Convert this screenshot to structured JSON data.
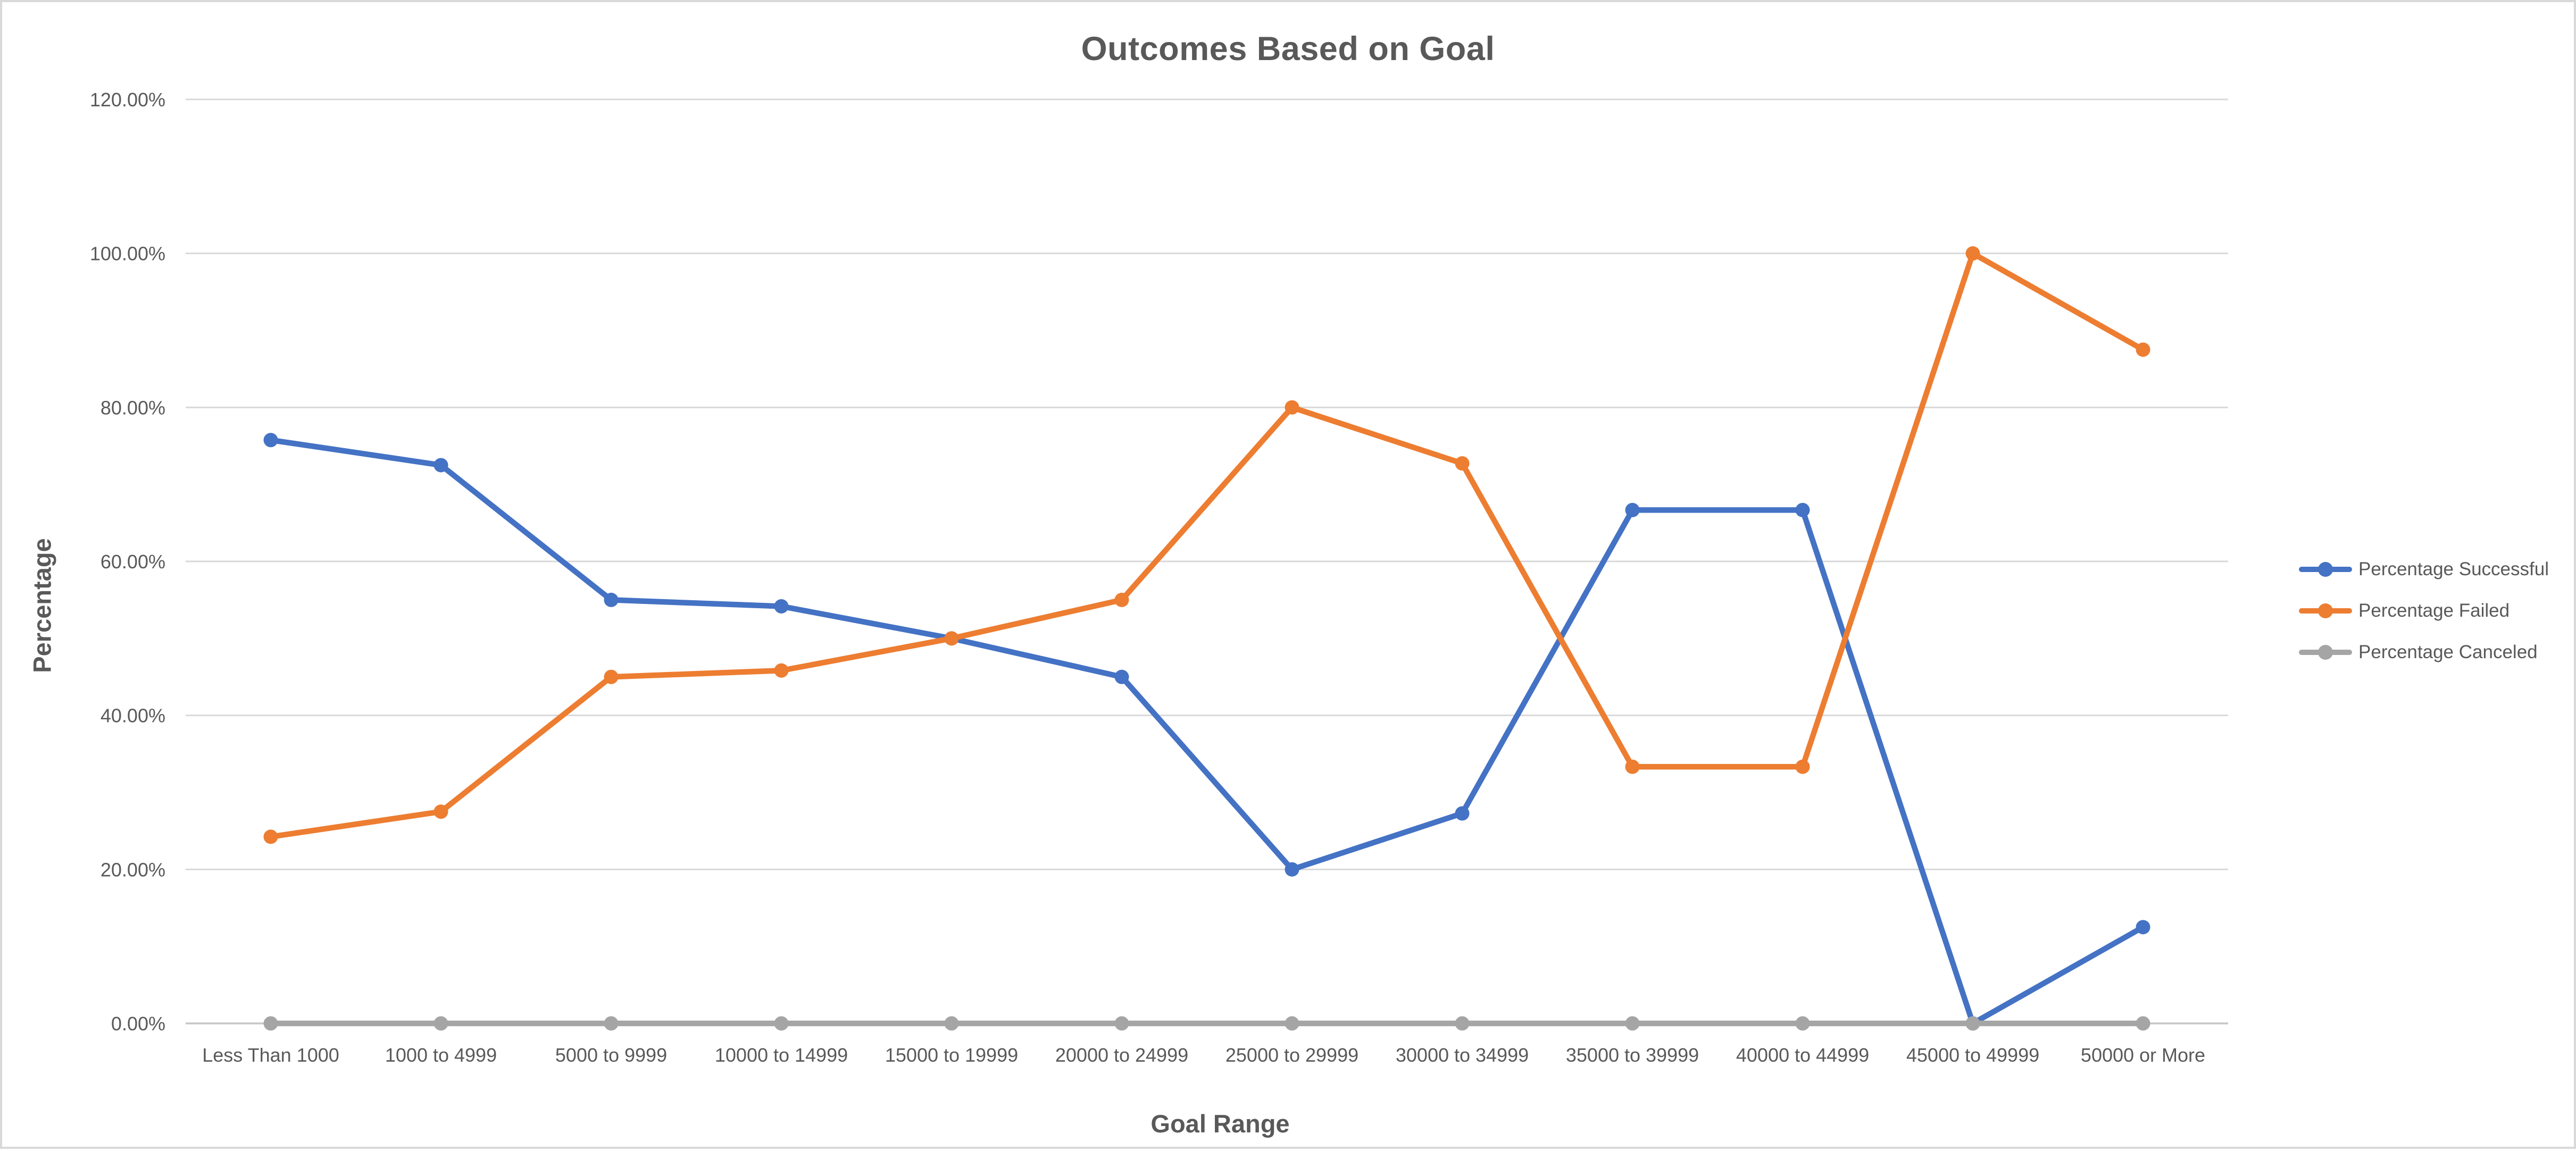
{
  "chart": {
    "title": "Outcomes Based on Goal",
    "x_axis_title": "Goal Range",
    "y_axis_title": "Percentage",
    "background_color": "#FFFFFF",
    "border_color": "#D9D9D9",
    "gridline_color": "#D9D9D9",
    "axis_line_color": "#C6C6C6",
    "text_color": "#595959"
  },
  "chart_data": {
    "type": "line",
    "title": "Outcomes Based on Goal",
    "xlabel": "Goal Range",
    "ylabel": "Percentage",
    "categories": [
      "Less Than 1000",
      "1000 to 4999",
      "5000 to 9999",
      "10000 to 14999",
      "15000 to 19999",
      "20000 to 24999",
      "25000 to 29999",
      "30000 to 34999",
      "35000 to 39999",
      "40000 to 44999",
      "45000 to 49999",
      "50000 or More"
    ],
    "series": [
      {
        "name": "Percentage Successful",
        "color": "#4472C4",
        "values": [
          75.76,
          72.5,
          55.0,
          54.17,
          50.0,
          45.0,
          20.0,
          27.27,
          66.67,
          66.67,
          0.0,
          12.5
        ]
      },
      {
        "name": "Percentage Failed",
        "color": "#ED7D31",
        "values": [
          24.24,
          27.5,
          45.0,
          45.83,
          50.0,
          55.0,
          80.0,
          72.73,
          33.33,
          33.33,
          100.0,
          87.5
        ]
      },
      {
        "name": "Percentage Canceled",
        "color": "#A5A5A5",
        "values": [
          0,
          0,
          0,
          0,
          0,
          0,
          0,
          0,
          0,
          0,
          0,
          0
        ]
      }
    ],
    "y_ticks": [
      "0.00%",
      "20.00%",
      "40.00%",
      "60.00%",
      "80.00%",
      "100.00%",
      "120.00%"
    ],
    "ylim": [
      0,
      120
    ],
    "y_tick_step": 20,
    "grid": true,
    "legend_position": "right",
    "marker": "circle"
  }
}
